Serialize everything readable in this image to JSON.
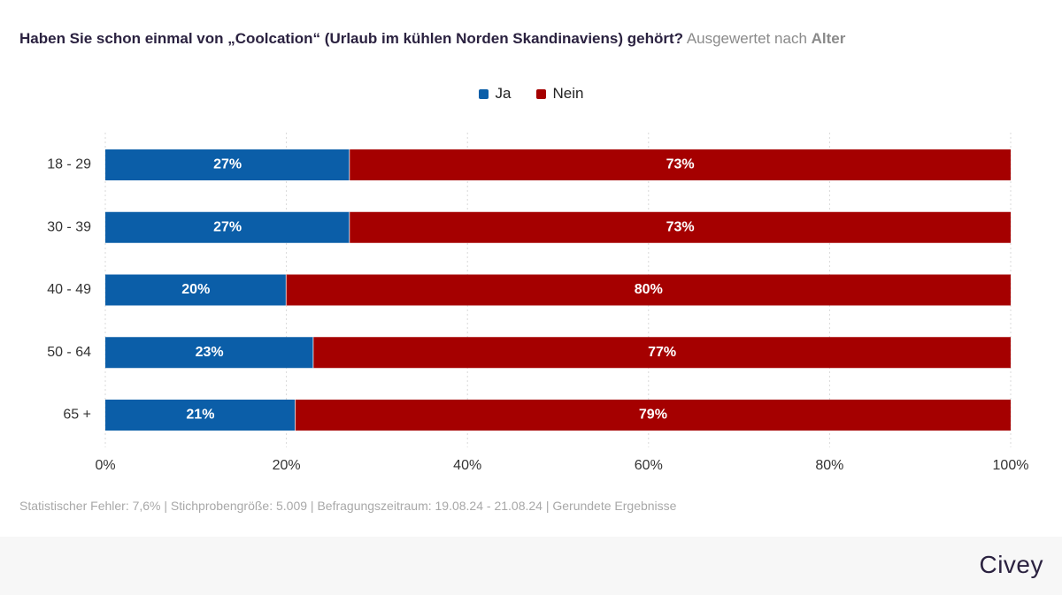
{
  "header": {
    "title": "Haben Sie schon einmal von „Coolcation“ (Urlaub im kühlen Norden Skandinaviens) gehört?",
    "subtitle_prefix": "Ausgewertet nach",
    "subtitle_emphasis": "Alter"
  },
  "colors": {
    "ja": "#0b5ea8",
    "nein": "#a50000"
  },
  "chart_data": {
    "type": "bar",
    "orientation": "horizontal",
    "stacked": true,
    "categories": [
      "18 - 29",
      "30 - 39",
      "40 - 49",
      "50 - 64",
      "65 +"
    ],
    "series": [
      {
        "name": "Ja",
        "values": [
          27,
          27,
          20,
          23,
          21
        ],
        "labels": [
          "27%",
          "27%",
          "20%",
          "23%",
          "21%"
        ]
      },
      {
        "name": "Nein",
        "values": [
          73,
          73,
          80,
          77,
          79
        ],
        "labels": [
          "73%",
          "73%",
          "80%",
          "77%",
          "79%"
        ]
      }
    ],
    "xlim": [
      0,
      100
    ],
    "xticks": [
      0,
      20,
      40,
      60,
      80,
      100
    ],
    "xtick_labels": [
      "0%",
      "20%",
      "40%",
      "60%",
      "80%",
      "100%"
    ],
    "grid": true,
    "legend_position": "top-center"
  },
  "footer": {
    "text": "Statistischer Fehler: 7,6% | Stichprobengröße: 5.009 | Befragungszeitraum: 19.08.24 - 21.08.24 | Gerundete Ergebnisse"
  },
  "brand": {
    "name": "Civey"
  }
}
